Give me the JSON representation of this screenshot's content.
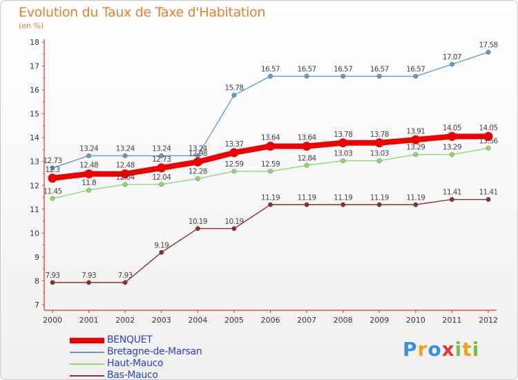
{
  "title": "Evolution du Taux de Taxe d'Habitation",
  "subtitle": "(en %)",
  "brand": {
    "letters": [
      {
        "ch": "P",
        "color": "#3a8fd6"
      },
      {
        "ch": "r",
        "color": "#f0a020"
      },
      {
        "ch": "o",
        "color": "#3a8fd6"
      },
      {
        "ch": "x",
        "color": "#e8352e"
      },
      {
        "ch": "i",
        "color": "#7ac143"
      },
      {
        "ch": "t",
        "color": "#f0a020"
      },
      {
        "ch": "i",
        "color": "#7ac143"
      }
    ]
  },
  "chart_data": {
    "type": "line",
    "x": [
      "2000",
      "2001",
      "2002",
      "2003",
      "2004",
      "2005",
      "2006",
      "2007",
      "2008",
      "2009",
      "2010",
      "2011",
      "2012"
    ],
    "ylim": [
      7,
      18
    ],
    "yticks": [
      7,
      8,
      9,
      10,
      11,
      12,
      13,
      14,
      15,
      16,
      17,
      18
    ],
    "grid": false,
    "legend_position": "bottom-left",
    "series": [
      {
        "name": "BENQUET",
        "color": "#ee0000",
        "values": [
          12.3,
          12.48,
          12.48,
          12.73,
          12.98,
          13.37,
          13.64,
          13.64,
          13.78,
          13.78,
          13.91,
          14.05,
          14.05
        ],
        "labels": [
          "12.3",
          "12.48",
          "12.48",
          "12.73",
          "12.98",
          "13.37",
          "13.64",
          "13.64",
          "13.78",
          "13.78",
          "13.91",
          "14.05",
          "14.05"
        ]
      },
      {
        "name": "Bretagne-de-Marsan",
        "color": "#5f9bd0",
        "values": [
          12.73,
          13.24,
          13.24,
          13.24,
          13.24,
          15.78,
          16.57,
          16.57,
          16.57,
          16.57,
          16.57,
          17.07,
          17.58
        ],
        "labels": [
          "12.73",
          "13.24",
          "13.24",
          "13.24",
          "13.24",
          "15.78",
          "16.57",
          "16.57",
          "16.57",
          "16.57",
          "16.57",
          "17.07",
          "17.58"
        ]
      },
      {
        "name": "Haut-Mauco",
        "color": "#90d870",
        "values": [
          11.45,
          11.8,
          12.04,
          12.04,
          12.28,
          12.59,
          12.59,
          12.84,
          13.03,
          13.03,
          13.29,
          13.29,
          13.56
        ],
        "labels": [
          "11.45",
          "11.8",
          "12.04",
          "12.04",
          "12.28",
          "12.59",
          "12.59",
          "12.84",
          "13.03",
          "13.03",
          "13.29",
          "13.29",
          "13.56"
        ]
      },
      {
        "name": "Bas-Mauco",
        "color": "#8b3030",
        "values": [
          7.93,
          7.93,
          7.93,
          9.19,
          10.19,
          10.19,
          11.19,
          11.19,
          11.19,
          11.19,
          11.19,
          11.41,
          11.41
        ],
        "labels": [
          "7.93",
          "7.93",
          "7.93",
          "9.19",
          "10.19",
          "10.19",
          "11.19",
          "11.19",
          "11.19",
          "11.19",
          "11.19",
          "11.41",
          "11.41"
        ]
      }
    ]
  }
}
